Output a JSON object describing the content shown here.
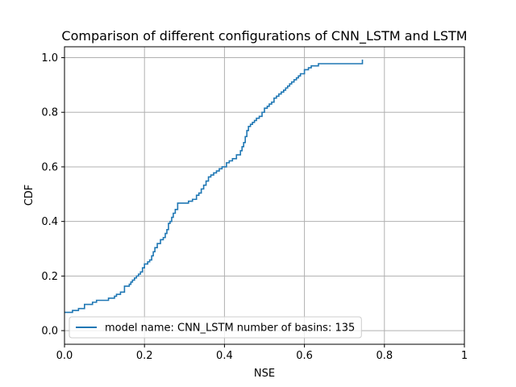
{
  "colors": {
    "series": "#1f77b4",
    "grid": "#b0b0b0",
    "axes": "#000000",
    "legend_border": "#cccccc"
  },
  "chart_data": {
    "type": "line",
    "title": "Comparison of different configurations of CNN_LSTM and LSTM",
    "xlabel": "NSE",
    "ylabel": "CDF",
    "xlim": [
      0,
      1
    ],
    "ylim": [
      -0.05,
      1.04
    ],
    "xticks": [
      0,
      0.2,
      0.4,
      0.6,
      0.8,
      1
    ],
    "xtick_labels": [
      "0.0",
      "0.2",
      "0.4",
      "0.6",
      "0.8",
      "1"
    ],
    "yticks": [
      0,
      0.2,
      0.4,
      0.6,
      0.8,
      1
    ],
    "ytick_labels": [
      "0.0",
      "0.2",
      "0.4",
      "0.6",
      "0.8",
      "1.0"
    ],
    "grid": true,
    "legend_position": "lower-left",
    "step": true,
    "series": [
      {
        "name": "model name: CNN_LSTM number of basins: 135",
        "x": [
          0.0,
          0.02,
          0.035,
          0.05,
          0.07,
          0.08,
          0.1,
          0.11,
          0.125,
          0.13,
          0.14,
          0.15,
          0.158,
          0.162,
          0.166,
          0.17,
          0.175,
          0.18,
          0.185,
          0.19,
          0.195,
          0.2,
          0.208,
          0.213,
          0.218,
          0.222,
          0.226,
          0.232,
          0.24,
          0.247,
          0.252,
          0.256,
          0.26,
          0.264,
          0.268,
          0.272,
          0.277,
          0.283,
          0.29,
          0.296,
          0.31,
          0.32,
          0.33,
          0.336,
          0.342,
          0.348,
          0.354,
          0.36,
          0.366,
          0.373,
          0.38,
          0.387,
          0.394,
          0.405,
          0.412,
          0.42,
          0.43,
          0.44,
          0.444,
          0.448,
          0.452,
          0.456,
          0.46,
          0.465,
          0.47,
          0.475,
          0.48,
          0.487,
          0.494,
          0.5,
          0.507,
          0.512,
          0.518,
          0.524,
          0.53,
          0.536,
          0.542,
          0.548,
          0.553,
          0.558,
          0.563,
          0.568,
          0.574,
          0.58,
          0.585,
          0.59,
          0.6,
          0.61,
          0.617,
          0.626,
          0.635,
          0.645,
          0.656,
          0.668,
          0.68,
          0.7,
          0.72,
          0.742,
          0.745
        ],
        "values": [
          0.067,
          0.074,
          0.081,
          0.096,
          0.104,
          0.111,
          0.111,
          0.119,
          0.126,
          0.133,
          0.141,
          0.163,
          0.163,
          0.17,
          0.178,
          0.185,
          0.193,
          0.2,
          0.207,
          0.215,
          0.23,
          0.244,
          0.252,
          0.259,
          0.274,
          0.289,
          0.304,
          0.319,
          0.333,
          0.341,
          0.356,
          0.37,
          0.393,
          0.4,
          0.415,
          0.43,
          0.444,
          0.467,
          0.467,
          0.467,
          0.474,
          0.481,
          0.496,
          0.504,
          0.519,
          0.533,
          0.548,
          0.563,
          0.57,
          0.578,
          0.585,
          0.593,
          0.6,
          0.615,
          0.622,
          0.63,
          0.644,
          0.659,
          0.674,
          0.689,
          0.711,
          0.733,
          0.748,
          0.756,
          0.763,
          0.77,
          0.778,
          0.785,
          0.8,
          0.815,
          0.822,
          0.83,
          0.837,
          0.852,
          0.859,
          0.867,
          0.874,
          0.881,
          0.889,
          0.896,
          0.904,
          0.911,
          0.919,
          0.926,
          0.933,
          0.941,
          0.956,
          0.963,
          0.97,
          0.97,
          0.978,
          0.978,
          0.978,
          0.978,
          0.978,
          0.978,
          0.978,
          0.978,
          0.993
        ]
      }
    ]
  }
}
